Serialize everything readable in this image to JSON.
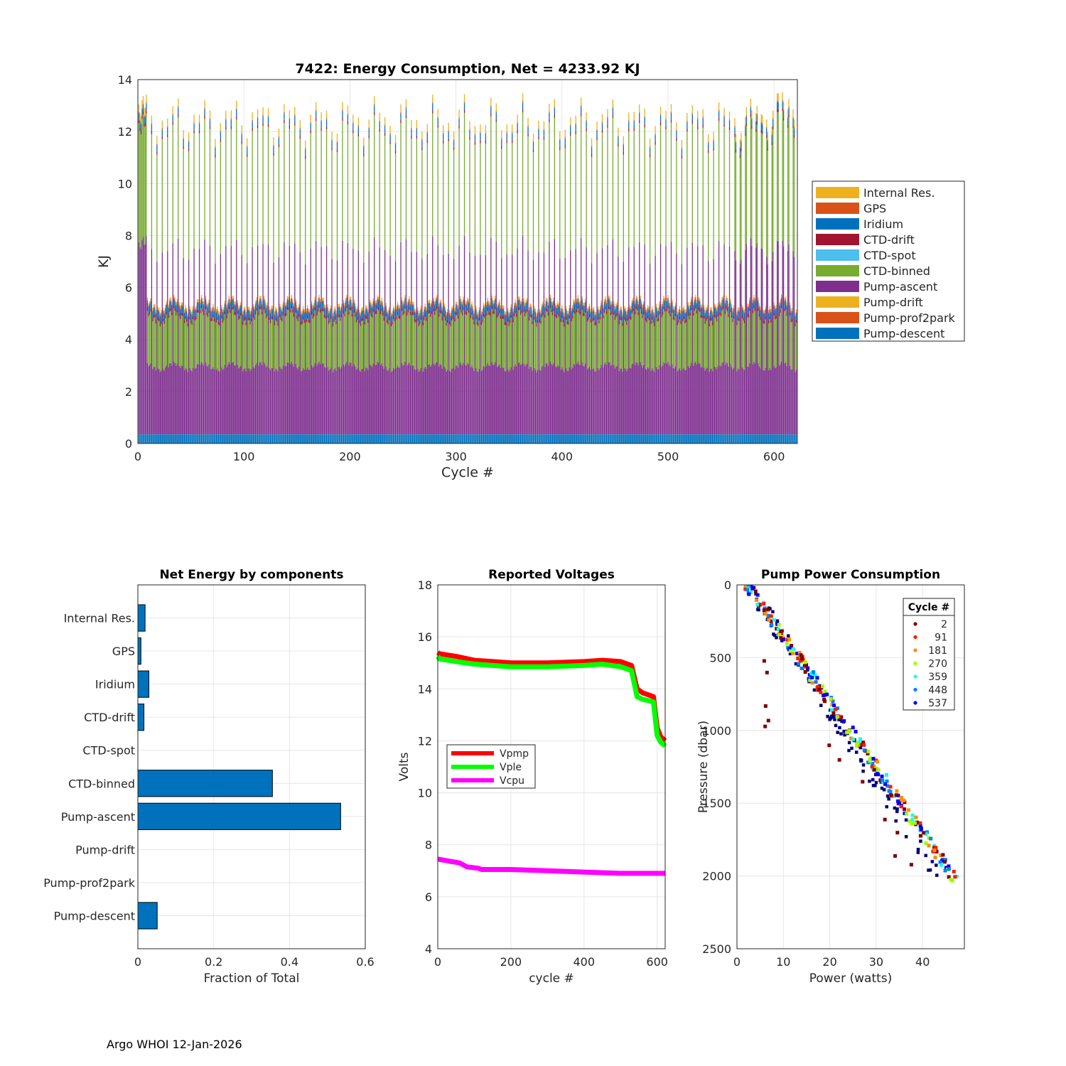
{
  "footer": "Argo WHOI 12-Jan-2026",
  "chart_data": [
    {
      "id": "energy",
      "type": "stacked-bar",
      "title": "7422: Energy Consumption,  Net = 4233.92 KJ",
      "xlabel": "Cycle #",
      "ylabel": "KJ",
      "xlim": [
        0,
        622
      ],
      "ylim": [
        0,
        14
      ],
      "xticks": [
        0,
        100,
        200,
        300,
        400,
        500,
        600
      ],
      "yticks": [
        0,
        2,
        4,
        6,
        8,
        10,
        12,
        14
      ],
      "grid": true,
      "legend_position": "right",
      "legend": [
        "Internal Res.",
        "GPS",
        "Iridium",
        "CTD-drift",
        "CTD-spot",
        "CTD-binned",
        "Pump-ascent",
        "Pump-drift",
        "Pump-prof2park",
        "Pump-descent"
      ],
      "colors": {
        "Internal Res.": "#EDB120",
        "GPS": "#D95319",
        "Iridium": "#0072BD",
        "CTD-drift": "#A2142F",
        "CTD-spot": "#4DBEEE",
        "CTD-binned": "#77AC30",
        "Pump-ascent": "#7E2F8E",
        "Pump-drift": "#EDB120",
        "Pump-prof2park": "#D95319",
        "Pump-descent": "#0072BD"
      },
      "typical_cycle": {
        "short_profile": {
          "Pump-descent": 0.35,
          "Pump-ascent": 2.6,
          "CTD-binned": 1.9,
          "CTD-drift": 0.12,
          "Iridium": 0.25,
          "GPS": 0.05,
          "Internal Res.": 0.1,
          "total": 5.1
        },
        "deep_profile": {
          "Pump-descent": 0.35,
          "Pump-ascent": 7.1,
          "CTD-binned": 4.4,
          "CTD-drift": 0.12,
          "Iridium": 0.25,
          "GPS": 0.05,
          "Internal Res.": 0.3,
          "total": 12.5
        }
      }
    },
    {
      "id": "net",
      "type": "barh",
      "title": "Net Energy by components",
      "xlabel": "Fraction of Total",
      "ylabel": "",
      "xlim": [
        0,
        0.6
      ],
      "xticks": [
        0,
        0.2,
        0.4,
        0.6
      ],
      "grid": true,
      "color": "#0072BD",
      "categories": [
        "Internal Res.",
        "GPS",
        "Iridium",
        "CTD-drift",
        "CTD-spot",
        "CTD-binned",
        "Pump-ascent",
        "Pump-drift",
        "Pump-prof2park",
        "Pump-descent"
      ],
      "values": [
        0.019,
        0.008,
        0.029,
        0.016,
        0,
        0.355,
        0.535,
        0,
        0,
        0.051
      ]
    },
    {
      "id": "volts",
      "type": "line",
      "title": "Reported Voltages",
      "xlabel": "cycle #",
      "ylabel": "Volts",
      "xlim": [
        0,
        622
      ],
      "ylim": [
        4,
        18
      ],
      "xticks": [
        0,
        200,
        400,
        600
      ],
      "yticks": [
        4,
        6,
        8,
        10,
        12,
        14,
        16,
        18
      ],
      "grid": true,
      "legend_position": "left",
      "series": [
        {
          "name": "Vpmp",
          "color": "#FF0000",
          "x": [
            0,
            5,
            50,
            100,
            150,
            200,
            300,
            400,
            450,
            500,
            530,
            545,
            560,
            590,
            600,
            610,
            622
          ],
          "y": [
            15.4,
            15.35,
            15.25,
            15.1,
            15.05,
            15.0,
            15.0,
            15.05,
            15.1,
            15.05,
            14.9,
            14.0,
            13.85,
            13.7,
            12.5,
            12.15,
            12.0
          ]
        },
        {
          "name": "Vple",
          "color": "#00FF00",
          "x": [
            0,
            5,
            50,
            100,
            150,
            200,
            300,
            400,
            450,
            500,
            530,
            545,
            560,
            590,
            600,
            610,
            622
          ],
          "y": [
            15.25,
            15.15,
            15.05,
            14.95,
            14.9,
            14.85,
            14.85,
            14.9,
            14.95,
            14.85,
            14.7,
            13.7,
            13.6,
            13.5,
            12.2,
            11.95,
            11.8
          ]
        },
        {
          "name": "Vcpu",
          "color": "#FF00FF",
          "x": [
            0,
            20,
            60,
            80,
            110,
            120,
            200,
            300,
            400,
            500,
            540,
            600,
            622
          ],
          "y": [
            7.45,
            7.4,
            7.3,
            7.15,
            7.1,
            7.05,
            7.05,
            7.0,
            6.95,
            6.9,
            6.9,
            6.9,
            6.9
          ]
        }
      ]
    },
    {
      "id": "pump",
      "type": "scatter",
      "title": "Pump Power Consumption",
      "xlabel": "Power (watts)",
      "ylabel": "Pressure (dbar)",
      "xlim": [
        0,
        49
      ],
      "ylim": [
        0,
        2500
      ],
      "y_reversed": true,
      "xticks": [
        0,
        10,
        20,
        30,
        40
      ],
      "yticks": [
        0,
        500,
        1000,
        1500,
        2000,
        2500
      ],
      "grid": true,
      "legend_title": "Cycle #",
      "legend_position": "top-right",
      "legend": [
        {
          "label": "2",
          "color": "#800000"
        },
        {
          "label": "91",
          "color": "#FF1A00"
        },
        {
          "label": "181",
          "color": "#FF8C00"
        },
        {
          "label": "270",
          "color": "#9CFF00"
        },
        {
          "label": "359",
          "color": "#1AFFE6"
        },
        {
          "label": "448",
          "color": "#0080FF"
        },
        {
          "label": "537",
          "color": "#0000FF"
        }
      ],
      "main_trend": {
        "x": [
          3,
          48.5
        ],
        "y": [
          0,
          2050
        ]
      },
      "early_trend": {
        "x": [
          2.5,
          44
        ],
        "y": [
          0,
          2050
        ],
        "color": "#00007A"
      },
      "outliers": [
        [
          5.8,
          520
        ],
        [
          6.4,
          600
        ],
        [
          6.1,
          830
        ],
        [
          6.7,
          930
        ],
        [
          6.0,
          970
        ],
        [
          19.8,
          1100
        ],
        [
          22.0,
          1200
        ],
        [
          27.0,
          1350
        ],
        [
          31.8,
          1610
        ],
        [
          34.5,
          1700
        ],
        [
          34.0,
          1860
        ],
        [
          37.5,
          1920
        ]
      ]
    }
  ]
}
